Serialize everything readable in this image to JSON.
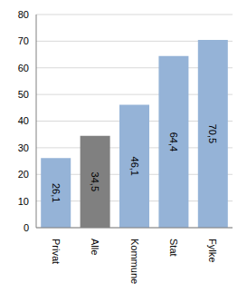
{
  "chart_data": {
    "type": "bar",
    "categories": [
      "Privat",
      "Alle",
      "Kommune",
      "Stat",
      "Fylke"
    ],
    "values": [
      26.1,
      34.5,
      46.1,
      64.4,
      70.5
    ],
    "value_labels": [
      "26,1",
      "34,5",
      "46,1",
      "64,4",
      "70,5"
    ],
    "colors": [
      "#95b3d7",
      "#808080",
      "#95b3d7",
      "#95b3d7",
      "#95b3d7"
    ],
    "ylim": [
      0,
      80
    ],
    "yticks": [
      0,
      10,
      20,
      30,
      40,
      50,
      60,
      70,
      80
    ],
    "grid": true,
    "data_labels": true
  }
}
